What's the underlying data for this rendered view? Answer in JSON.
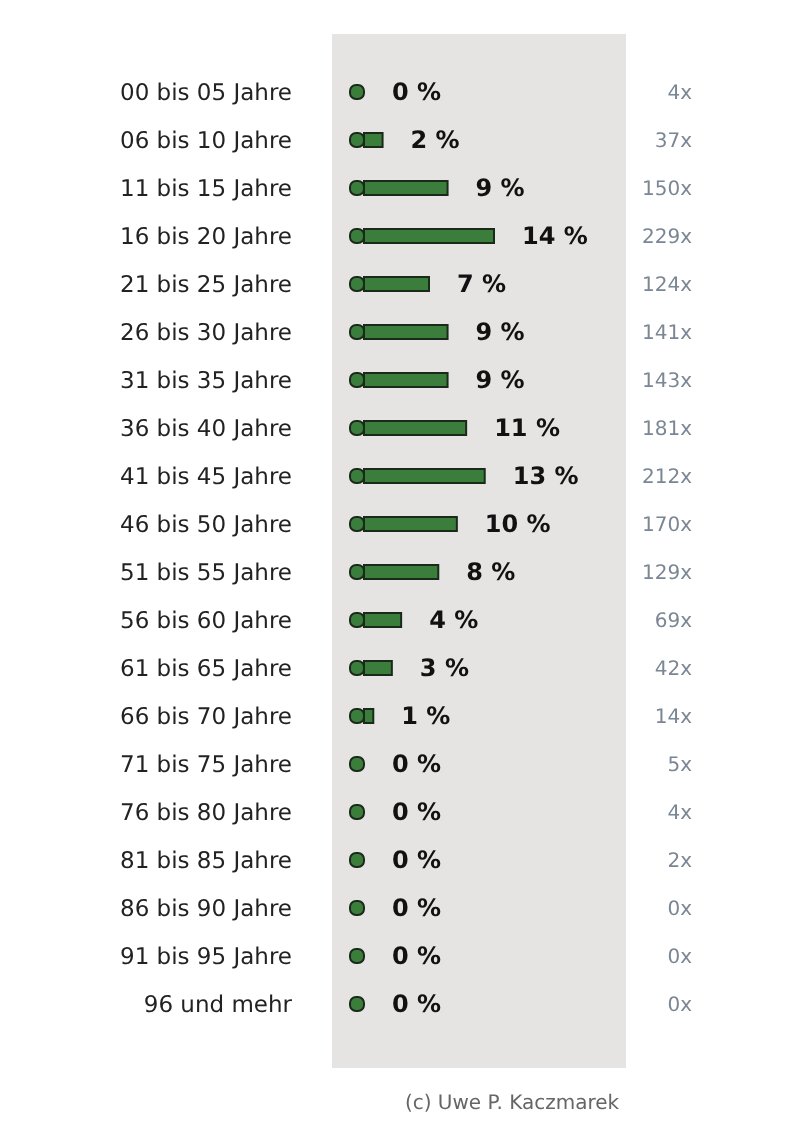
{
  "chart_data": {
    "type": "bar",
    "orientation": "horizontal",
    "color": "#3b7d3b",
    "categories": [
      "00 bis 05 Jahre",
      "06 bis 10 Jahre",
      "11 bis 15 Jahre",
      "16 bis 20 Jahre",
      "21 bis 25 Jahre",
      "26 bis 30 Jahre",
      "31 bis 35 Jahre",
      "36 bis 40 Jahre",
      "41 bis 45 Jahre",
      "46 bis 50 Jahre",
      "51 bis 55 Jahre",
      "56 bis 60 Jahre",
      "61 bis 65 Jahre",
      "66 bis 70 Jahre",
      "71 bis 75 Jahre",
      "76 bis 80 Jahre",
      "81 bis 85 Jahre",
      "86 bis 90 Jahre",
      "91 bis 95 Jahre",
      "96 und mehr"
    ],
    "values": [
      0,
      2,
      9,
      14,
      7,
      9,
      9,
      11,
      13,
      10,
      8,
      4,
      3,
      1,
      0,
      0,
      0,
      0,
      0,
      0
    ],
    "value_labels": [
      "0 %",
      "2 %",
      "9 %",
      "14 %",
      "7 %",
      "9 %",
      "9 %",
      "11 %",
      "13 %",
      "10 %",
      "8 %",
      "4 %",
      "3 %",
      "1 %",
      "0 %",
      "0 %",
      "0 %",
      "0 %",
      "0 %",
      "0 %"
    ],
    "annotations": [
      "4x",
      "37x",
      "150x",
      "229x",
      "124x",
      "141x",
      "143x",
      "181x",
      "212x",
      "170x",
      "129x",
      "69x",
      "42x",
      "14x",
      "5x",
      "4x",
      "2x",
      "0x",
      "0x",
      "0x",
      "(c) Uwe P. Kaczmarek"
    ]
  }
}
